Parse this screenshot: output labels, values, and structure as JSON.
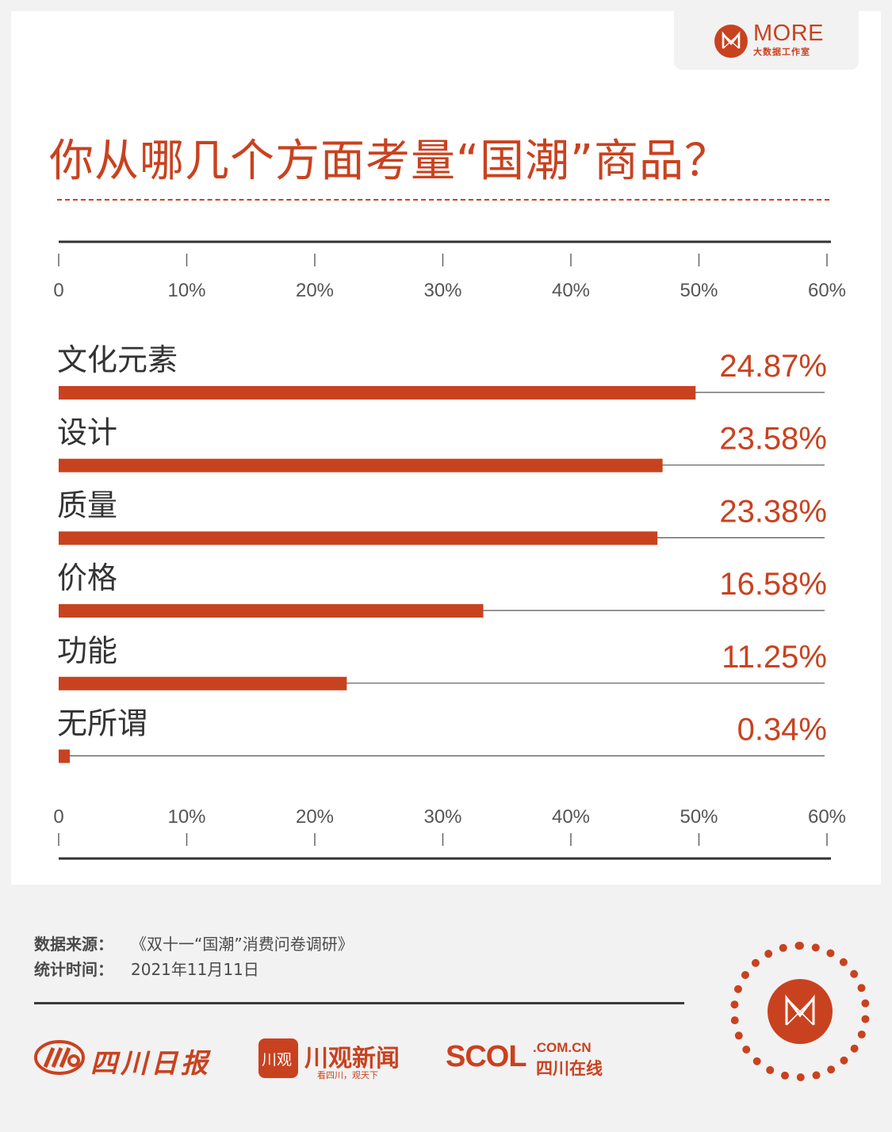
{
  "brand": {
    "name": "MORE",
    "sub": "大数据工作室"
  },
  "title": "你从哪几个方面考量“国潮”商品？",
  "chart_data": {
    "type": "bar",
    "orientation": "horizontal",
    "categories": [
      "文化元素",
      "设计",
      "质量",
      "价格",
      "功能",
      "无所谓"
    ],
    "values": [
      24.87,
      23.58,
      23.38,
      16.58,
      11.25,
      0.34
    ],
    "value_labels": [
      "24.87%",
      "23.58%",
      "23.38%",
      "16.58%",
      "11.25%",
      "0.34%"
    ],
    "xlim": [
      0,
      60
    ],
    "ticks": [
      "0",
      "10%",
      "20%",
      "30%",
      "40%",
      "50%",
      "60%"
    ],
    "bar_color": "#c9421f"
  },
  "footer": {
    "source_label": "数据来源：",
    "source_value": "《双十一“国潮”消费问卷调研》",
    "time_label": "统计时间：",
    "time_value": "2021年11月11日"
  },
  "publishers": {
    "p1": "四川日报",
    "p2_badge": "川观",
    "p2": "川观新闻",
    "p2_sub": "看四川，观天下",
    "p3": "SCOL",
    "p3_domain": ".COM.CN",
    "p3_sub": "四川在线"
  },
  "colors": {
    "accent": "#c9421f",
    "text": "#333333"
  }
}
